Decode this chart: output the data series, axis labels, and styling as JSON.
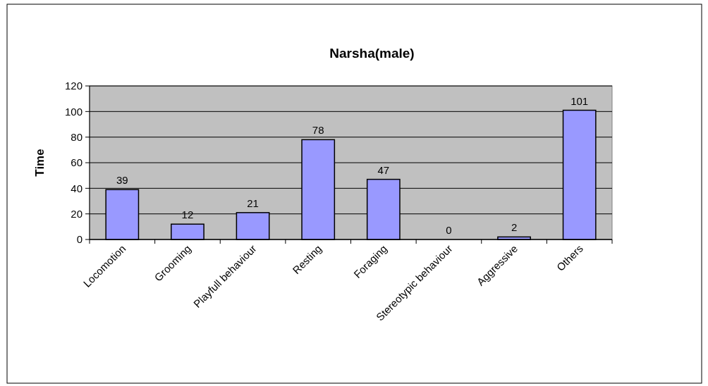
{
  "chart_data": {
    "type": "bar",
    "title": "Narsha(male)",
    "ylabel": "Time",
    "categories": [
      "Locomotion",
      "Grooming",
      "Playfull behaviour",
      "Resting",
      "Foraging",
      "Stereotypic behaviour",
      "Aggressive",
      "Others"
    ],
    "values": [
      39,
      12,
      21,
      78,
      47,
      0,
      2,
      101
    ],
    "color": "#9999ff",
    "ylim": [
      0,
      120
    ],
    "yticks": [
      0,
      20,
      40,
      60,
      80,
      100,
      120
    ],
    "grid": "y",
    "data_labels": true
  }
}
